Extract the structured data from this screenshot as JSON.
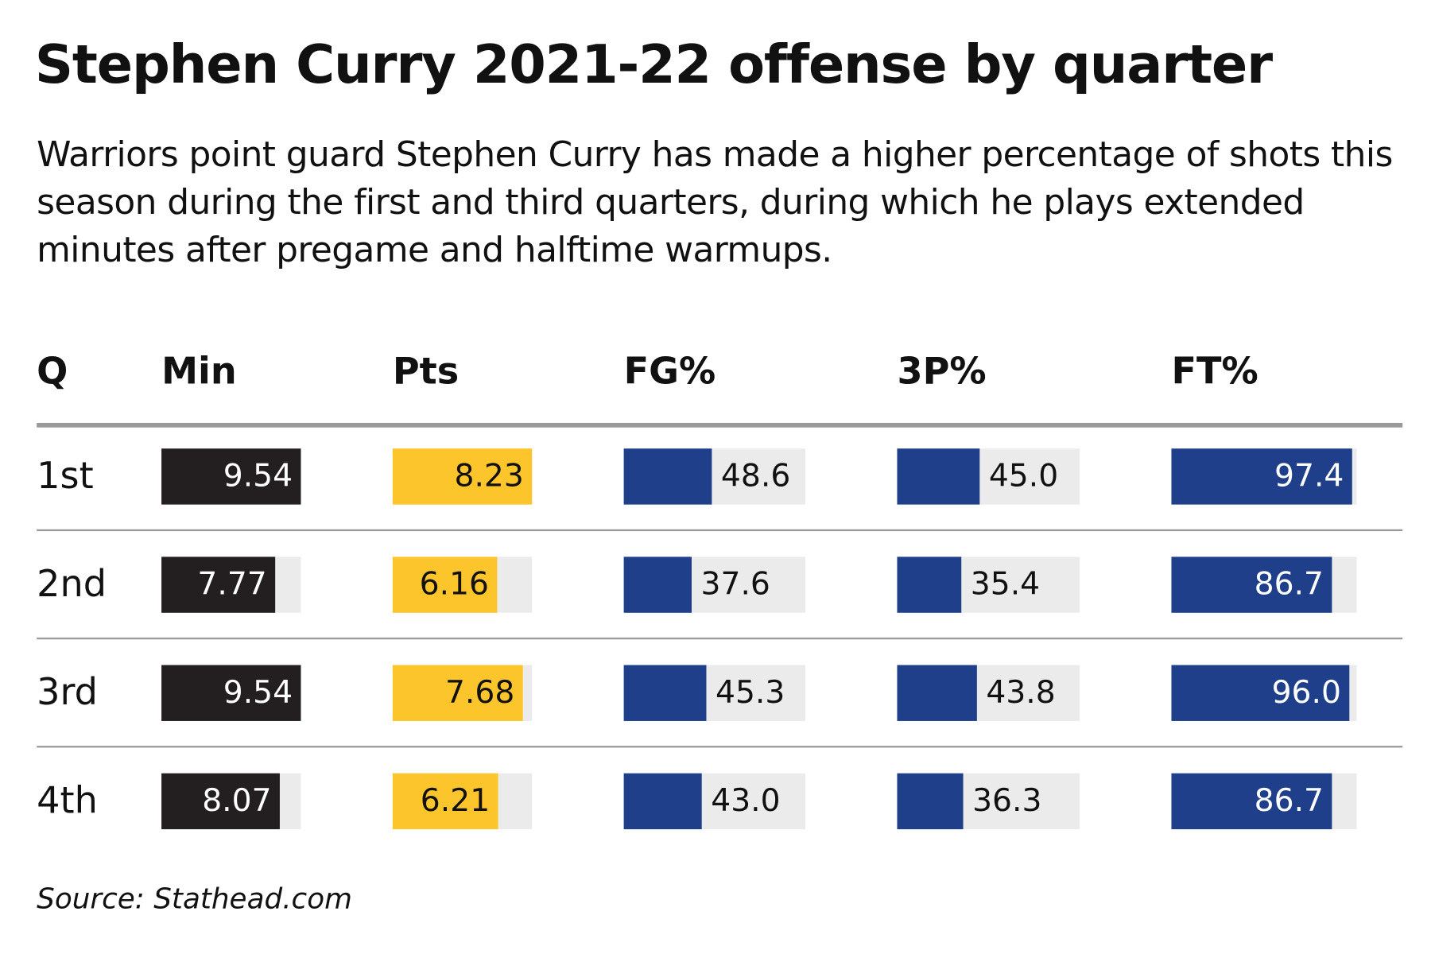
{
  "title": "Stephen Curry 2021-22 offense by quarter",
  "subtitle": "Warriors point guard Stephen Curry has made a higher percentage of shots this season during the first and third quarters,  during which he plays extended minutes after pregame and halftime warmups.",
  "source": "Source: Stathead.com",
  "colors": {
    "min": "#231f20",
    "pts": "#fdc52c",
    "pct": "#1f3f8a",
    "track": "#ebebeb"
  },
  "chart_data": {
    "type": "table",
    "columns": [
      "Q",
      "Min",
      "Pts",
      "FG%",
      "3P%",
      "FT%"
    ],
    "categories": [
      "1st",
      "2nd",
      "3rd",
      "4th"
    ],
    "series": [
      {
        "name": "Min",
        "values": [
          9.54,
          7.77,
          9.54,
          8.07
        ],
        "labels": [
          "9.54",
          "7.77",
          "9.54",
          "8.07"
        ]
      },
      {
        "name": "Pts",
        "values": [
          8.23,
          6.16,
          7.68,
          6.21
        ],
        "labels": [
          "8.23",
          "6.16",
          "7.68",
          "6.21"
        ]
      },
      {
        "name": "FG%",
        "values": [
          48.6,
          37.6,
          45.3,
          43.0
        ],
        "labels": [
          "48.6",
          "37.6",
          "45.3",
          "43.0"
        ]
      },
      {
        "name": "3P%",
        "values": [
          45.0,
          35.4,
          43.8,
          36.3
        ],
        "labels": [
          "45.0",
          "35.4",
          "43.8",
          "36.3"
        ]
      },
      {
        "name": "FT%",
        "values": [
          97.4,
          86.7,
          96.0,
          86.7
        ],
        "labels": [
          "97.4",
          "86.7",
          "96.0",
          "86.7"
        ]
      }
    ]
  }
}
